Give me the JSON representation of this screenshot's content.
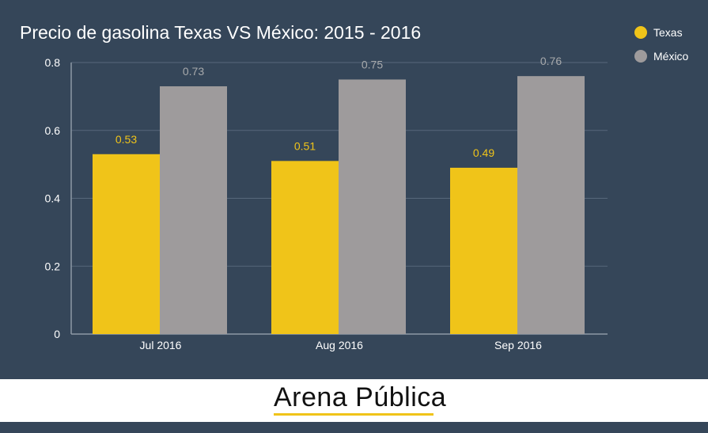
{
  "colors": {
    "background": "#354659",
    "texas": "#f0c419",
    "mexico": "#9e9b9c",
    "axis": "#8d99a6",
    "grid": "#56677a",
    "mexico_label": "#a7a9ab"
  },
  "footer": {
    "logo_text": "Arena Pública"
  },
  "chart_data": {
    "type": "bar",
    "title": "Precio de gasolina Texas VS México: 2015 - 2016",
    "categories": [
      "Jul 2016",
      "Aug 2016",
      "Sep 2016"
    ],
    "series": [
      {
        "name": "Texas",
        "values": [
          0.53,
          0.51,
          0.49
        ]
      },
      {
        "name": "México",
        "values": [
          0.73,
          0.75,
          0.76
        ]
      }
    ],
    "value_labels": [
      [
        "0.53",
        "0.51",
        "0.49"
      ],
      [
        "0.73",
        "0.75",
        "0.76"
      ]
    ],
    "ylim": [
      0,
      0.8
    ],
    "yticks": [
      0,
      0.2,
      0.4,
      0.6,
      0.8
    ],
    "ytick_labels": [
      "0",
      "0.2",
      "0.4",
      "0.6",
      "0.8"
    ],
    "xlabel": "",
    "ylabel": "",
    "grid": true,
    "legend_position": "top-right"
  }
}
